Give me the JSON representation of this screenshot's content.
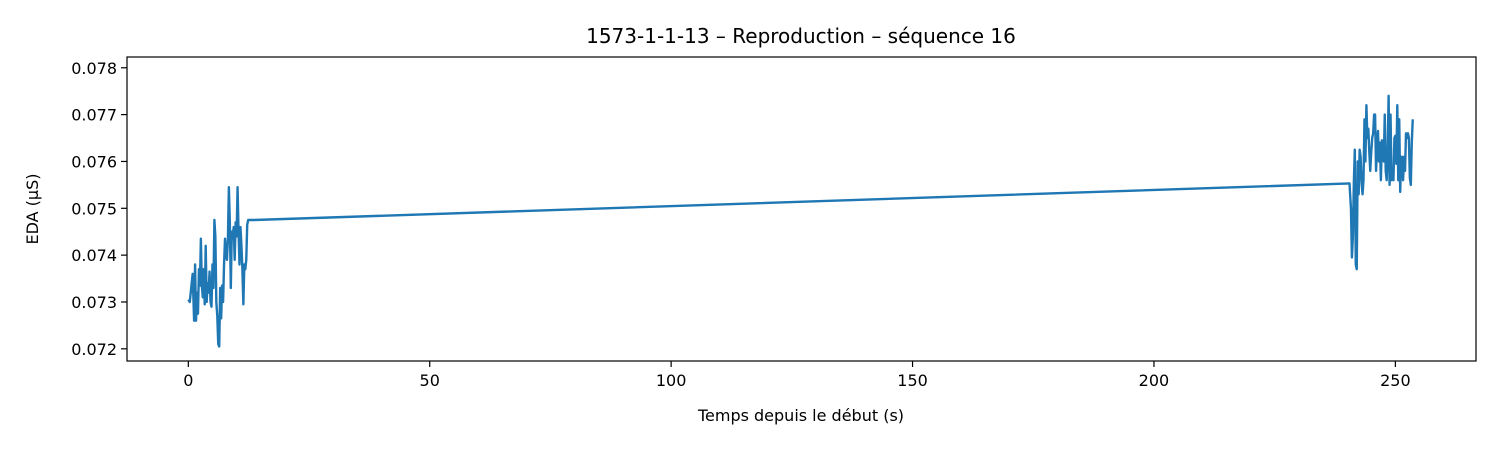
{
  "chart_data": {
    "type": "line",
    "title": "1573-1-1-13 – Reproduction – séquence 16",
    "xlabel": "Temps depuis le début (s)",
    "ylabel": "EDA (µS)",
    "xlim": [
      -12.7,
      266.7
    ],
    "ylim": [
      0.07174,
      0.07823
    ],
    "xticks": [
      0,
      50,
      100,
      150,
      200,
      250
    ],
    "xtick_labels": [
      "0",
      "50",
      "100",
      "150",
      "200",
      "250"
    ],
    "yticks": [
      0.072,
      0.073,
      0.074,
      0.075,
      0.076,
      0.077,
      0.078
    ],
    "ytick_labels": [
      "0.072",
      "0.073",
      "0.074",
      "0.075",
      "0.076",
      "0.077",
      "0.078"
    ],
    "grid": false,
    "line_color": "#1f77b4",
    "series": [
      {
        "x": [
          0,
          0.3,
          0.6,
          0.9,
          1.2,
          1.4,
          1.6,
          1.8,
          2.0,
          2.2,
          2.4,
          2.6,
          2.8,
          3.0,
          3.2,
          3.4,
          3.6,
          3.8,
          4.0,
          4.2,
          4.4,
          4.6,
          4.8,
          5.0,
          5.2,
          5.4,
          5.6,
          5.8,
          6.0,
          6.2,
          6.4,
          6.6,
          6.8,
          7.0,
          7.2,
          7.4,
          7.6,
          7.8,
          8.0,
          8.2,
          8.4,
          8.6,
          8.8,
          9.0,
          9.2,
          9.4,
          9.6,
          9.8,
          10.0,
          10.2,
          10.4,
          10.6,
          10.8,
          11.0,
          11.2,
          11.4,
          11.6,
          11.8,
          12.0,
          12.2,
          12.4,
          12.6,
          12.8,
          13.0,
          13.3,
          13.6,
          240.5,
          240.8,
          241.0,
          241.2,
          241.4,
          241.6,
          241.8,
          242.0,
          242.2,
          242.4,
          242.6,
          242.8,
          243.0,
          243.2,
          243.4,
          243.6,
          243.8,
          244.0,
          244.2,
          244.4,
          244.6,
          244.8,
          245.0,
          245.2,
          245.4,
          245.6,
          245.8,
          246.0,
          246.2,
          246.4,
          246.6,
          246.8,
          247.0,
          247.2,
          247.4,
          247.6,
          247.8,
          248.0,
          248.2,
          248.4,
          248.6,
          248.8,
          249.0,
          249.2,
          249.4,
          249.6,
          249.8,
          250.0,
          250.2,
          250.4,
          250.6,
          250.8,
          251.0,
          251.2,
          251.4,
          251.6,
          251.8,
          252.0,
          252.2,
          252.4,
          252.6,
          252.8,
          253.0,
          253.2,
          253.4,
          253.6
        ],
        "y": [
          0.07305,
          0.073,
          0.0733,
          0.0736,
          0.0726,
          0.0738,
          0.0726,
          0.0732,
          0.07275,
          0.0737,
          0.07335,
          0.07435,
          0.07335,
          0.0731,
          0.0737,
          0.07295,
          0.0742,
          0.073,
          0.0734,
          0.0732,
          0.07365,
          0.073,
          0.0729,
          0.0738,
          0.0733,
          0.07475,
          0.0744,
          0.073,
          0.0727,
          0.0721,
          0.07205,
          0.0733,
          0.07265,
          0.07335,
          0.073,
          0.0738,
          0.07435,
          0.074,
          0.0739,
          0.07435,
          0.07545,
          0.0747,
          0.0733,
          0.0745,
          0.0744,
          0.0746,
          0.0739,
          0.0747,
          0.0744,
          0.07545,
          0.0745,
          0.0738,
          0.0746,
          0.0742,
          0.0737,
          0.07295,
          0.0738,
          0.0737,
          0.0739,
          0.07465,
          0.07475,
          0.07475,
          0.07475,
          0.07475,
          0.07475,
          0.07475,
          0.07553,
          0.075,
          0.07395,
          0.0744,
          0.07555,
          0.07625,
          0.0738,
          0.0737,
          0.076,
          0.0753,
          0.07625,
          0.0761,
          0.07555,
          0.0753,
          0.0756,
          0.0769,
          0.076,
          0.0772,
          0.0765,
          0.0767,
          0.0762,
          0.0758,
          0.0762,
          0.0765,
          0.0766,
          0.077,
          0.077,
          0.0758,
          0.0763,
          0.07665,
          0.076,
          0.0764,
          0.0756,
          0.07645,
          0.07605,
          0.076,
          0.077,
          0.0758,
          0.0756,
          0.0762,
          0.0774,
          0.0755,
          0.077,
          0.0756,
          0.0758,
          0.0756,
          0.0765,
          0.07655,
          0.07595,
          0.0772,
          0.0756,
          0.0769,
          0.07535,
          0.0761,
          0.0761,
          0.0756,
          0.0761,
          0.0758,
          0.0766,
          0.0765,
          0.0766,
          0.0765,
          0.07565,
          0.0755,
          0.0764,
          0.0769
        ]
      }
    ]
  }
}
